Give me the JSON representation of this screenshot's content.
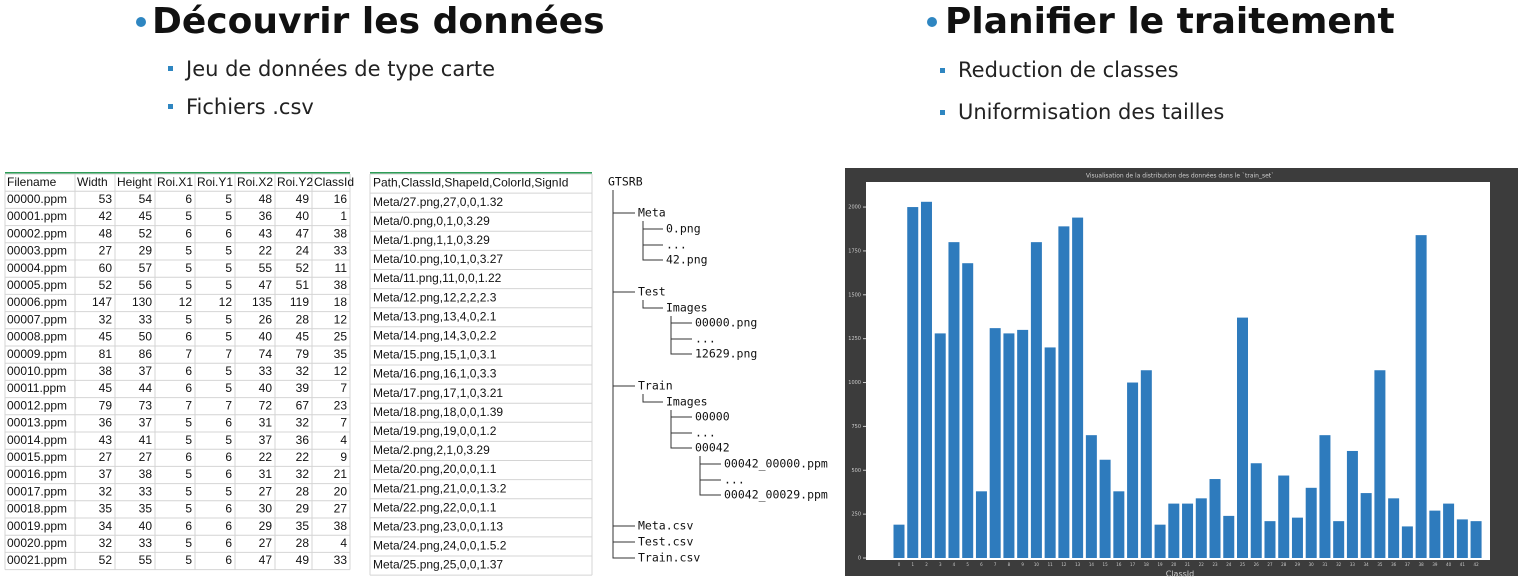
{
  "slide": {
    "left": {
      "title": "Découvrir les données",
      "bullets": [
        "Jeu de données de type carte",
        "Fichiers .csv"
      ]
    },
    "right": {
      "title": "Planifier le traitement",
      "bullets": [
        "Reduction de classes",
        "Uniformisation des tailles"
      ]
    }
  },
  "csv_table": {
    "header": [
      "Filename",
      "Width",
      "Height",
      "Roi.X1",
      "Roi.Y1",
      "Roi.X2",
      "Roi.Y2",
      "ClassId"
    ],
    "rows": [
      [
        "00000.ppm",
        53,
        54,
        6,
        5,
        48,
        49,
        16
      ],
      [
        "00001.ppm",
        42,
        45,
        5,
        5,
        36,
        40,
        1
      ],
      [
        "00002.ppm",
        48,
        52,
        6,
        6,
        43,
        47,
        38
      ],
      [
        "00003.ppm",
        27,
        29,
        5,
        5,
        22,
        24,
        33
      ],
      [
        "00004.ppm",
        60,
        57,
        5,
        5,
        55,
        52,
        11
      ],
      [
        "00005.ppm",
        52,
        56,
        5,
        5,
        47,
        51,
        38
      ],
      [
        "00006.ppm",
        147,
        130,
        12,
        12,
        135,
        119,
        18
      ],
      [
        "00007.ppm",
        32,
        33,
        5,
        5,
        26,
        28,
        12
      ],
      [
        "00008.ppm",
        45,
        50,
        6,
        5,
        40,
        45,
        25
      ],
      [
        "00009.ppm",
        81,
        86,
        7,
        7,
        74,
        79,
        35
      ],
      [
        "00010.ppm",
        38,
        37,
        6,
        5,
        33,
        32,
        12
      ],
      [
        "00011.ppm",
        45,
        44,
        6,
        5,
        40,
        39,
        7
      ],
      [
        "00012.ppm",
        79,
        73,
        7,
        7,
        72,
        67,
        23
      ],
      [
        "00013.ppm",
        36,
        37,
        5,
        6,
        31,
        32,
        7
      ],
      [
        "00014.ppm",
        43,
        41,
        5,
        5,
        37,
        36,
        4
      ],
      [
        "00015.ppm",
        27,
        27,
        6,
        6,
        22,
        22,
        9
      ],
      [
        "00016.ppm",
        37,
        38,
        5,
        6,
        31,
        32,
        21
      ],
      [
        "00017.ppm",
        32,
        33,
        5,
        5,
        27,
        28,
        20
      ],
      [
        "00018.ppm",
        35,
        35,
        5,
        6,
        30,
        29,
        27
      ],
      [
        "00019.ppm",
        34,
        40,
        6,
        6,
        29,
        35,
        38
      ],
      [
        "00020.ppm",
        32,
        33,
        5,
        6,
        27,
        28,
        4
      ],
      [
        "00021.ppm",
        52,
        55,
        5,
        6,
        47,
        49,
        33
      ]
    ]
  },
  "meta_table": {
    "header": "Path,ClassId,ShapeId,ColorId,SignId",
    "rows": [
      "Meta/27.png,27,0,0,1.32",
      "Meta/0.png,0,1,0,3.29",
      "Meta/1.png,1,1,0,3.29",
      "Meta/10.png,10,1,0,3.27",
      "Meta/11.png,11,0,0,1.22",
      "Meta/12.png,12,2,2,2.3",
      "Meta/13.png,13,4,0,2.1",
      "Meta/14.png,14,3,0,2.2",
      "Meta/15.png,15,1,0,3.1",
      "Meta/16.png,16,1,0,3.3",
      "Meta/17.png,17,1,0,3.21",
      "Meta/18.png,18,0,0,1.39",
      "Meta/19.png,19,0,0,1.2",
      "Meta/2.png,2,1,0,3.29",
      "Meta/20.png,20,0,0,1.1",
      "Meta/21.png,21,0,0,1.3.2",
      "Meta/22.png,22,0,0,1.1",
      "Meta/23.png,23,0,0,1.13",
      "Meta/24.png,24,0,0,1.5.2",
      "Meta/25.png,25,0,0,1.37"
    ]
  },
  "tree": {
    "nodes": [
      {
        "label": "GTSRB",
        "level": 0
      },
      {
        "label": "Meta",
        "level": 1
      },
      {
        "label": "0.png",
        "level": 2
      },
      {
        "label": "...",
        "level": 2
      },
      {
        "label": "42.png",
        "level": 2
      },
      {
        "label": "Test",
        "level": 1
      },
      {
        "label": "Images",
        "level": 2
      },
      {
        "label": "00000.png",
        "level": 3
      },
      {
        "label": "...",
        "level": 3
      },
      {
        "label": "12629.png",
        "level": 3
      },
      {
        "label": "Train",
        "level": 1
      },
      {
        "label": "Images",
        "level": 2
      },
      {
        "label": "00000",
        "level": 3
      },
      {
        "label": "...",
        "level": 3
      },
      {
        "label": "00042",
        "level": 3
      },
      {
        "label": "00042_00000.ppm",
        "level": 4
      },
      {
        "label": "...",
        "level": 4
      },
      {
        "label": "00042_00029.ppm",
        "level": 4
      },
      {
        "label": "Meta.csv",
        "level": 1
      },
      {
        "label": "Test.csv",
        "level": 1
      },
      {
        "label": "Train.csv",
        "level": 1
      }
    ]
  },
  "chart_data": {
    "type": "bar",
    "title": "Visualisation de la distribution des données dans le `train_set`",
    "x_label": "ClassId",
    "categories": [
      "0",
      "1",
      "2",
      "3",
      "4",
      "5",
      "6",
      "7",
      "8",
      "9",
      "10",
      "11",
      "12",
      "13",
      "14",
      "15",
      "16",
      "17",
      "18",
      "19",
      "20",
      "21",
      "22",
      "23",
      "24",
      "25",
      "26",
      "27",
      "28",
      "29",
      "30",
      "31",
      "32",
      "33",
      "34",
      "35",
      "36",
      "37",
      "38",
      "39",
      "40",
      "41",
      "42"
    ],
    "values": [
      190,
      2000,
      2030,
      1280,
      1800,
      1680,
      380,
      1310,
      1280,
      1300,
      1800,
      1200,
      1890,
      1940,
      700,
      560,
      380,
      1000,
      1070,
      190,
      310,
      310,
      340,
      450,
      240,
      1370,
      540,
      210,
      470,
      230,
      400,
      700,
      210,
      610,
      370,
      1070,
      340,
      180,
      1840,
      270,
      310,
      220,
      210
    ],
    "color": "#2e7bbd",
    "ylim": [
      0,
      2120
    ],
    "yticks": [
      0,
      250,
      500,
      750,
      1000,
      1250,
      1500,
      1750,
      2000
    ]
  }
}
